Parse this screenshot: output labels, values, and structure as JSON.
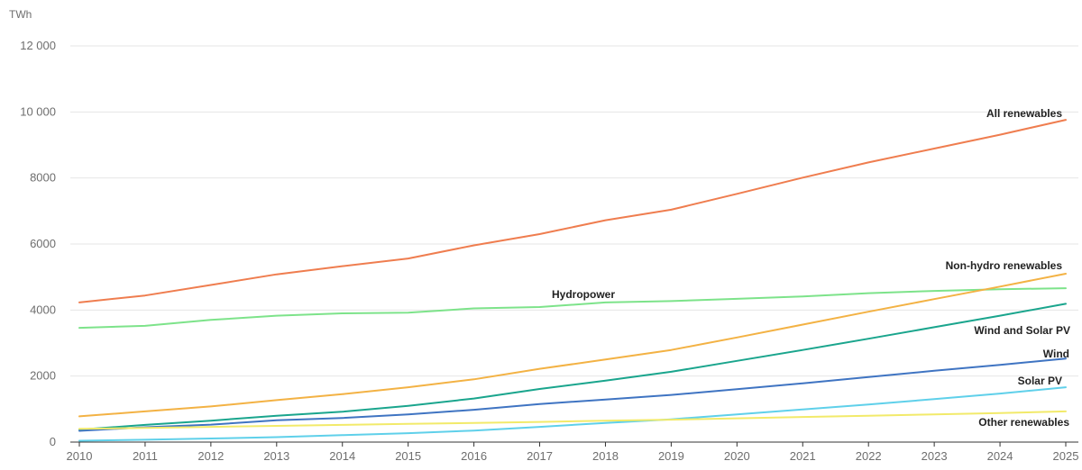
{
  "chart_data": {
    "type": "line",
    "y_unit": "TWh",
    "x": [
      "2010",
      "2011",
      "2012",
      "2013",
      "2014",
      "2015",
      "2016",
      "2017",
      "2018",
      "2019",
      "2020",
      "2021",
      "2022",
      "2023",
      "2024",
      "2025"
    ],
    "ylim": [
      0,
      12000
    ],
    "yticks": [
      0,
      2000,
      4000,
      6000,
      8000,
      10000,
      12000
    ],
    "ytick_labels": [
      "0",
      "2000",
      "4000",
      "6000",
      "8000",
      "10 000",
      "12 000"
    ],
    "grid": true,
    "legend": "none (series labelled directly on the lines)",
    "series": [
      {
        "name": "All renewables",
        "color": "#ef7d4f",
        "values": [
          4230,
          4440,
          4760,
          5080,
          5330,
          5560,
          5960,
          6300,
          6720,
          7040,
          7520,
          8010,
          8470,
          8890,
          9310,
          9760
        ]
      },
      {
        "name": "Hydropower",
        "color": "#7de38a",
        "values": [
          3460,
          3520,
          3700,
          3830,
          3900,
          3920,
          4050,
          4090,
          4230,
          4270,
          4340,
          4410,
          4510,
          4580,
          4630,
          4660
        ]
      },
      {
        "name": "Non-hydro renewables",
        "color": "#f3b244",
        "values": [
          780,
          930,
          1080,
          1270,
          1450,
          1660,
          1900,
          2220,
          2500,
          2790,
          3170,
          3560,
          3950,
          4330,
          4710,
          5100
        ]
      },
      {
        "name": "Wind and Solar PV",
        "color": "#1aa58d",
        "values": [
          380,
          520,
          650,
          800,
          920,
          1100,
          1320,
          1610,
          1860,
          2130,
          2460,
          2790,
          3130,
          3480,
          3830,
          4190
        ]
      },
      {
        "name": "Wind",
        "color": "#3f74c2",
        "values": [
          340,
          450,
          530,
          660,
          730,
          840,
          980,
          1150,
          1290,
          1430,
          1600,
          1780,
          1970,
          2160,
          2340,
          2530
        ]
      },
      {
        "name": "Solar PV",
        "color": "#5fd0ea",
        "values": [
          40,
          70,
          110,
          150,
          210,
          270,
          350,
          460,
          580,
          690,
          840,
          990,
          1140,
          1300,
          1470,
          1660
        ]
      },
      {
        "name": "Other renewables",
        "color": "#f2ea6a",
        "values": [
          400,
          430,
          460,
          490,
          520,
          550,
          580,
          610,
          650,
          680,
          720,
          760,
          800,
          840,
          880,
          930
        ]
      }
    ]
  }
}
